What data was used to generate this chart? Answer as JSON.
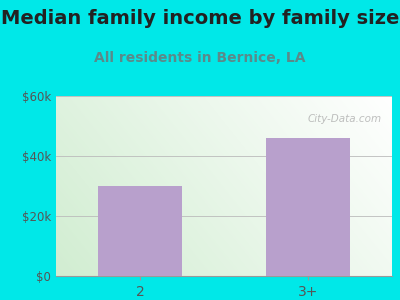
{
  "title": "Median family income by family size",
  "subtitle": "All residents in Bernice, LA",
  "categories": [
    "2",
    "3+"
  ],
  "values": [
    30000,
    46000
  ],
  "bar_color": "#b8a0cc",
  "figure_bg": "#00e8e8",
  "ylim": [
    0,
    60000
  ],
  "yticks": [
    0,
    20000,
    40000,
    60000
  ],
  "ytick_labels": [
    "$0",
    "$20k",
    "$40k",
    "$60k"
  ],
  "title_fontsize": 14,
  "subtitle_fontsize": 10,
  "title_color": "#222222",
  "subtitle_color": "#5a8a8a",
  "watermark": "City-Data.com",
  "bar_width": 0.5
}
